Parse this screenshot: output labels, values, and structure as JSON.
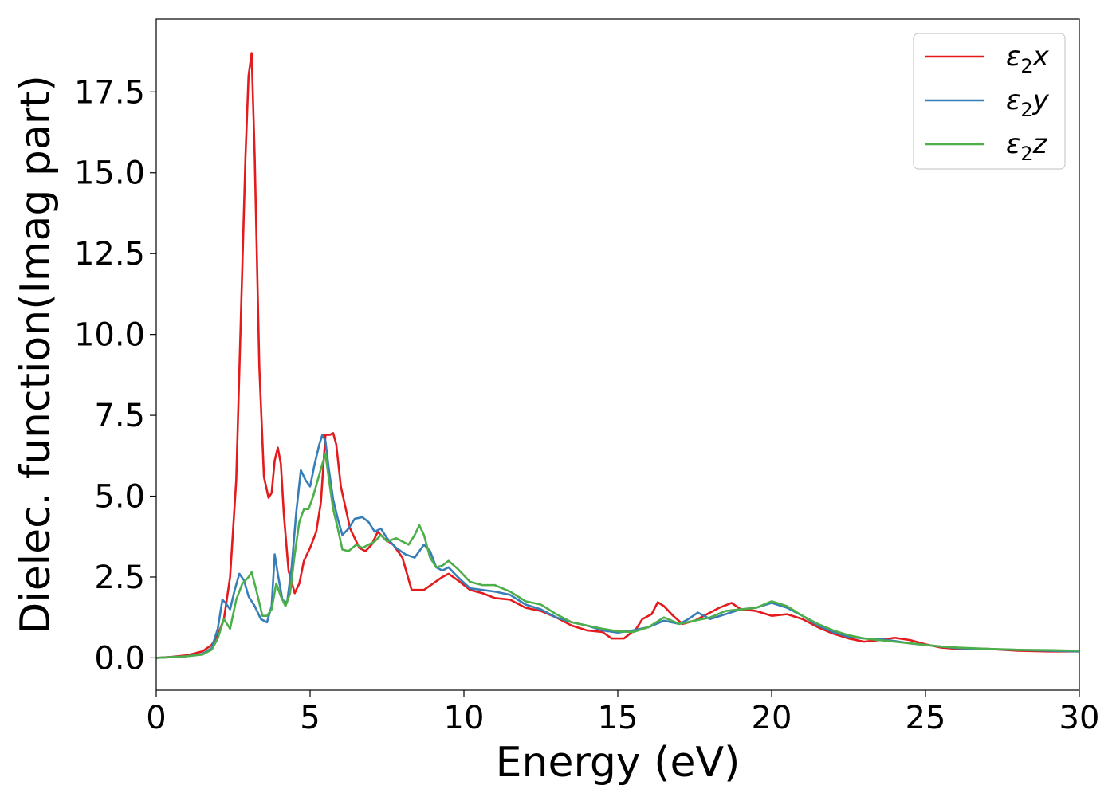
{
  "chart_data": {
    "type": "line",
    "title": "",
    "xlabel": "Energy (eV)",
    "ylabel": "Dielec. function(Imag part)",
    "xlim": [
      0,
      30
    ],
    "ylim": [
      -1.0,
      19.75
    ],
    "xticks": [
      0,
      5,
      10,
      15,
      20,
      25,
      30
    ],
    "xtick_labels": [
      "0",
      "5",
      "10",
      "15",
      "20",
      "25",
      "30"
    ],
    "yticks": [
      0.0,
      2.5,
      5.0,
      7.5,
      10.0,
      12.5,
      15.0,
      17.5
    ],
    "ytick_labels": [
      "0.0",
      "2.5",
      "5.0",
      "7.5",
      "10.0",
      "12.5",
      "15.0",
      "17.5"
    ],
    "grid": false,
    "legend_position": "top-right",
    "series": [
      {
        "name": "ε₂x",
        "legend_main": "ε",
        "legend_sub": "2",
        "legend_tail": "x",
        "color": "#e41a1c",
        "points": [
          [
            0,
            0
          ],
          [
            0.5,
            0.03
          ],
          [
            1.0,
            0.08
          ],
          [
            1.5,
            0.2
          ],
          [
            1.8,
            0.4
          ],
          [
            2.0,
            0.7
          ],
          [
            2.2,
            1.2
          ],
          [
            2.4,
            2.5
          ],
          [
            2.6,
            5.5
          ],
          [
            2.75,
            10.5
          ],
          [
            2.9,
            15.5
          ],
          [
            3.0,
            18.0
          ],
          [
            3.1,
            18.7
          ],
          [
            3.2,
            15.5
          ],
          [
            3.35,
            9.0
          ],
          [
            3.5,
            5.6
          ],
          [
            3.65,
            4.95
          ],
          [
            3.75,
            5.1
          ],
          [
            3.85,
            6.1
          ],
          [
            3.95,
            6.5
          ],
          [
            4.05,
            6.0
          ],
          [
            4.15,
            4.4
          ],
          [
            4.3,
            2.7
          ],
          [
            4.5,
            2.0
          ],
          [
            4.65,
            2.3
          ],
          [
            4.8,
            3.0
          ],
          [
            5.0,
            3.4
          ],
          [
            5.2,
            3.9
          ],
          [
            5.35,
            4.8
          ],
          [
            5.5,
            6.9
          ],
          [
            5.65,
            6.9
          ],
          [
            5.75,
            6.95
          ],
          [
            5.85,
            6.6
          ],
          [
            6.0,
            5.3
          ],
          [
            6.3,
            4.0
          ],
          [
            6.6,
            3.4
          ],
          [
            6.8,
            3.3
          ],
          [
            7.0,
            3.5
          ],
          [
            7.2,
            3.9
          ],
          [
            7.4,
            3.7
          ],
          [
            7.7,
            3.5
          ],
          [
            8.0,
            3.1
          ],
          [
            8.3,
            2.1
          ],
          [
            8.7,
            2.1
          ],
          [
            9.0,
            2.3
          ],
          [
            9.3,
            2.5
          ],
          [
            9.5,
            2.6
          ],
          [
            9.8,
            2.4
          ],
          [
            10.2,
            2.1
          ],
          [
            10.6,
            2.0
          ],
          [
            11.0,
            1.85
          ],
          [
            11.5,
            1.8
          ],
          [
            12.0,
            1.55
          ],
          [
            12.5,
            1.45
          ],
          [
            13.0,
            1.25
          ],
          [
            13.5,
            1.0
          ],
          [
            14.0,
            0.85
          ],
          [
            14.5,
            0.8
          ],
          [
            14.8,
            0.6
          ],
          [
            15.2,
            0.6
          ],
          [
            15.6,
            0.9
          ],
          [
            15.8,
            1.2
          ],
          [
            16.1,
            1.35
          ],
          [
            16.3,
            1.72
          ],
          [
            16.5,
            1.6
          ],
          [
            16.8,
            1.3
          ],
          [
            17.1,
            1.05
          ],
          [
            17.5,
            1.15
          ],
          [
            18.0,
            1.4
          ],
          [
            18.3,
            1.55
          ],
          [
            18.7,
            1.7
          ],
          [
            19.0,
            1.5
          ],
          [
            19.5,
            1.45
          ],
          [
            20.0,
            1.3
          ],
          [
            20.5,
            1.35
          ],
          [
            21.0,
            1.2
          ],
          [
            21.5,
            0.95
          ],
          [
            22.0,
            0.75
          ],
          [
            22.5,
            0.6
          ],
          [
            23.0,
            0.5
          ],
          [
            23.5,
            0.55
          ],
          [
            24.0,
            0.62
          ],
          [
            24.5,
            0.55
          ],
          [
            25.0,
            0.42
          ],
          [
            25.5,
            0.32
          ],
          [
            26.0,
            0.28
          ],
          [
            27.0,
            0.28
          ],
          [
            28.0,
            0.22
          ],
          [
            29.0,
            0.2
          ],
          [
            30.0,
            0.2
          ]
        ]
      },
      {
        "name": "ε₂y",
        "legend_main": "ε",
        "legend_sub": "2",
        "legend_tail": "y",
        "color": "#377eb8",
        "points": [
          [
            0,
            0
          ],
          [
            0.5,
            0.02
          ],
          [
            1.0,
            0.05
          ],
          [
            1.5,
            0.12
          ],
          [
            1.8,
            0.3
          ],
          [
            2.0,
            0.9
          ],
          [
            2.15,
            1.8
          ],
          [
            2.25,
            1.7
          ],
          [
            2.4,
            1.5
          ],
          [
            2.55,
            2.1
          ],
          [
            2.7,
            2.6
          ],
          [
            2.85,
            2.4
          ],
          [
            3.0,
            1.9
          ],
          [
            3.2,
            1.6
          ],
          [
            3.4,
            1.2
          ],
          [
            3.6,
            1.1
          ],
          [
            3.75,
            1.6
          ],
          [
            3.85,
            3.2
          ],
          [
            3.95,
            2.6
          ],
          [
            4.1,
            1.8
          ],
          [
            4.25,
            1.7
          ],
          [
            4.4,
            2.8
          ],
          [
            4.55,
            4.5
          ],
          [
            4.7,
            5.8
          ],
          [
            4.85,
            5.5
          ],
          [
            5.0,
            5.3
          ],
          [
            5.15,
            6.0
          ],
          [
            5.3,
            6.6
          ],
          [
            5.4,
            6.9
          ],
          [
            5.5,
            6.7
          ],
          [
            5.6,
            5.9
          ],
          [
            5.75,
            4.9
          ],
          [
            5.9,
            4.3
          ],
          [
            6.05,
            3.8
          ],
          [
            6.25,
            4.0
          ],
          [
            6.45,
            4.3
          ],
          [
            6.7,
            4.35
          ],
          [
            6.9,
            4.2
          ],
          [
            7.1,
            3.9
          ],
          [
            7.3,
            4.0
          ],
          [
            7.5,
            3.7
          ],
          [
            7.8,
            3.4
          ],
          [
            8.1,
            3.2
          ],
          [
            8.4,
            3.1
          ],
          [
            8.7,
            3.5
          ],
          [
            8.9,
            3.3
          ],
          [
            9.1,
            2.8
          ],
          [
            9.3,
            2.7
          ],
          [
            9.5,
            2.8
          ],
          [
            9.8,
            2.5
          ],
          [
            10.2,
            2.15
          ],
          [
            10.6,
            2.1
          ],
          [
            11.0,
            2.05
          ],
          [
            11.5,
            1.95
          ],
          [
            12.0,
            1.65
          ],
          [
            12.5,
            1.5
          ],
          [
            13.0,
            1.25
          ],
          [
            13.5,
            1.1
          ],
          [
            14.0,
            1.0
          ],
          [
            14.5,
            0.85
          ],
          [
            15.0,
            0.78
          ],
          [
            15.5,
            0.85
          ],
          [
            16.0,
            0.95
          ],
          [
            16.5,
            1.15
          ],
          [
            17.0,
            1.05
          ],
          [
            17.3,
            1.2
          ],
          [
            17.6,
            1.4
          ],
          [
            18.0,
            1.2
          ],
          [
            18.5,
            1.35
          ],
          [
            19.0,
            1.5
          ],
          [
            19.5,
            1.55
          ],
          [
            20.0,
            1.7
          ],
          [
            20.5,
            1.55
          ],
          [
            21.0,
            1.3
          ],
          [
            21.5,
            1.0
          ],
          [
            22.0,
            0.8
          ],
          [
            22.5,
            0.65
          ],
          [
            23.0,
            0.6
          ],
          [
            23.5,
            0.58
          ],
          [
            24.0,
            0.52
          ],
          [
            24.5,
            0.45
          ],
          [
            25.0,
            0.4
          ],
          [
            25.5,
            0.35
          ],
          [
            26.0,
            0.3
          ],
          [
            27.0,
            0.27
          ],
          [
            28.0,
            0.25
          ],
          [
            29.0,
            0.22
          ],
          [
            30.0,
            0.2
          ]
        ]
      },
      {
        "name": "ε₂z",
        "legend_main": "ε",
        "legend_sub": "2",
        "legend_tail": "z",
        "color": "#4daf4a",
        "points": [
          [
            0,
            0
          ],
          [
            0.5,
            0.02
          ],
          [
            1.0,
            0.05
          ],
          [
            1.5,
            0.1
          ],
          [
            1.8,
            0.25
          ],
          [
            2.0,
            0.6
          ],
          [
            2.2,
            1.2
          ],
          [
            2.4,
            0.9
          ],
          [
            2.6,
            1.8
          ],
          [
            2.8,
            2.3
          ],
          [
            3.0,
            2.5
          ],
          [
            3.1,
            2.65
          ],
          [
            3.25,
            2.1
          ],
          [
            3.45,
            1.3
          ],
          [
            3.6,
            1.3
          ],
          [
            3.75,
            1.5
          ],
          [
            3.9,
            2.3
          ],
          [
            4.05,
            1.9
          ],
          [
            4.2,
            1.6
          ],
          [
            4.35,
            2.0
          ],
          [
            4.5,
            3.2
          ],
          [
            4.65,
            4.2
          ],
          [
            4.8,
            4.6
          ],
          [
            4.95,
            4.6
          ],
          [
            5.1,
            5.0
          ],
          [
            5.25,
            5.5
          ],
          [
            5.4,
            6.0
          ],
          [
            5.5,
            6.3
          ],
          [
            5.6,
            5.6
          ],
          [
            5.75,
            4.6
          ],
          [
            5.9,
            4.0
          ],
          [
            6.05,
            3.35
          ],
          [
            6.25,
            3.3
          ],
          [
            6.5,
            3.5
          ],
          [
            6.7,
            3.4
          ],
          [
            6.9,
            3.5
          ],
          [
            7.1,
            3.6
          ],
          [
            7.3,
            3.8
          ],
          [
            7.5,
            3.6
          ],
          [
            7.8,
            3.7
          ],
          [
            8.0,
            3.6
          ],
          [
            8.2,
            3.5
          ],
          [
            8.4,
            3.8
          ],
          [
            8.55,
            4.1
          ],
          [
            8.7,
            3.8
          ],
          [
            8.9,
            3.1
          ],
          [
            9.1,
            2.8
          ],
          [
            9.3,
            2.85
          ],
          [
            9.5,
            3.0
          ],
          [
            9.8,
            2.75
          ],
          [
            10.2,
            2.35
          ],
          [
            10.6,
            2.25
          ],
          [
            11.0,
            2.25
          ],
          [
            11.5,
            2.05
          ],
          [
            12.0,
            1.75
          ],
          [
            12.5,
            1.65
          ],
          [
            13.0,
            1.35
          ],
          [
            13.5,
            1.1
          ],
          [
            14.0,
            1.0
          ],
          [
            14.5,
            0.9
          ],
          [
            15.0,
            0.82
          ],
          [
            15.5,
            0.8
          ],
          [
            16.0,
            0.95
          ],
          [
            16.5,
            1.25
          ],
          [
            17.0,
            1.05
          ],
          [
            17.5,
            1.15
          ],
          [
            18.0,
            1.25
          ],
          [
            18.5,
            1.45
          ],
          [
            19.0,
            1.5
          ],
          [
            19.5,
            1.55
          ],
          [
            20.0,
            1.75
          ],
          [
            20.5,
            1.6
          ],
          [
            21.0,
            1.3
          ],
          [
            21.5,
            1.05
          ],
          [
            22.0,
            0.85
          ],
          [
            22.5,
            0.7
          ],
          [
            23.0,
            0.6
          ],
          [
            23.5,
            0.55
          ],
          [
            24.0,
            0.5
          ],
          [
            24.5,
            0.45
          ],
          [
            25.0,
            0.4
          ],
          [
            25.5,
            0.35
          ],
          [
            26.0,
            0.32
          ],
          [
            27.0,
            0.28
          ],
          [
            28.0,
            0.25
          ],
          [
            29.0,
            0.24
          ],
          [
            30.0,
            0.22
          ]
        ]
      }
    ]
  }
}
